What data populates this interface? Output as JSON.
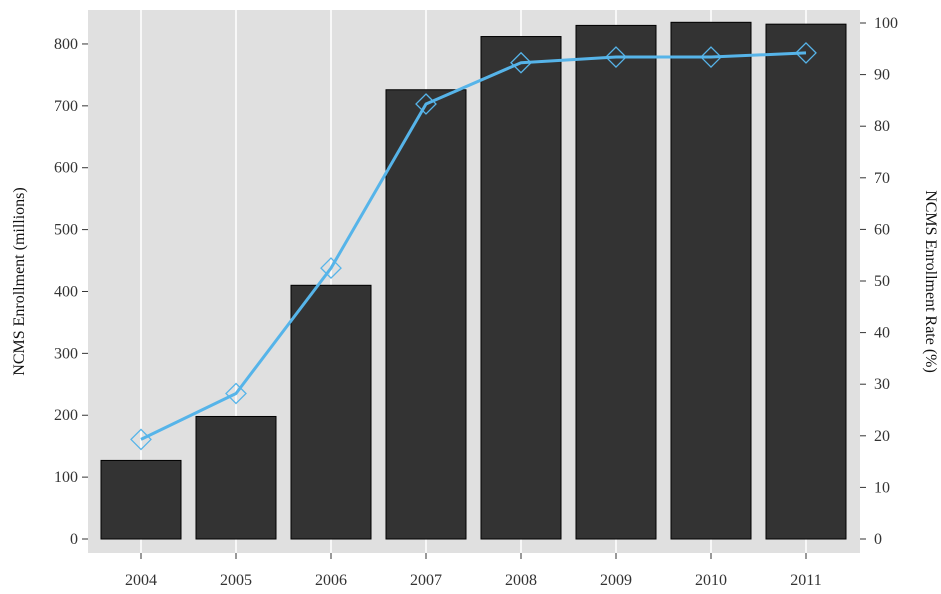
{
  "chart_data": {
    "type": "bar",
    "title": "",
    "categories": [
      "2004",
      "2005",
      "2006",
      "2007",
      "2008",
      "2009",
      "2010",
      "2011"
    ],
    "series": [
      {
        "type": "bar",
        "axis": "left",
        "values": [
          127,
          198,
          410,
          726,
          812,
          830,
          835,
          832
        ]
      },
      {
        "type": "line",
        "axis": "right",
        "marker": "diamond",
        "values": [
          19.3,
          28.2,
          52.5,
          84.3,
          92.3,
          93.4,
          93.4,
          94.2
        ]
      }
    ],
    "xlabel": "",
    "ylabel": "NCMS Enrollment (millions)",
    "y2label": "NCMS Enrollment Rate (%)",
    "ylim": [
      0,
      850
    ],
    "y2lim": [
      0,
      100
    ],
    "yticks": [
      "0",
      "100",
      "200",
      "300",
      "400",
      "500",
      "600",
      "700",
      "800"
    ],
    "y2ticks": [
      "0",
      "10",
      "20",
      "30",
      "40",
      "50",
      "60",
      "70",
      "80",
      "90",
      "100"
    ],
    "grid": "vertical",
    "legend": "none",
    "colors": {
      "bar_fill": "#333333",
      "bar_stroke": "#000000",
      "line": "#56b4e9",
      "panel_bg": "#e0e0e0",
      "grid": "#ffffff"
    }
  }
}
